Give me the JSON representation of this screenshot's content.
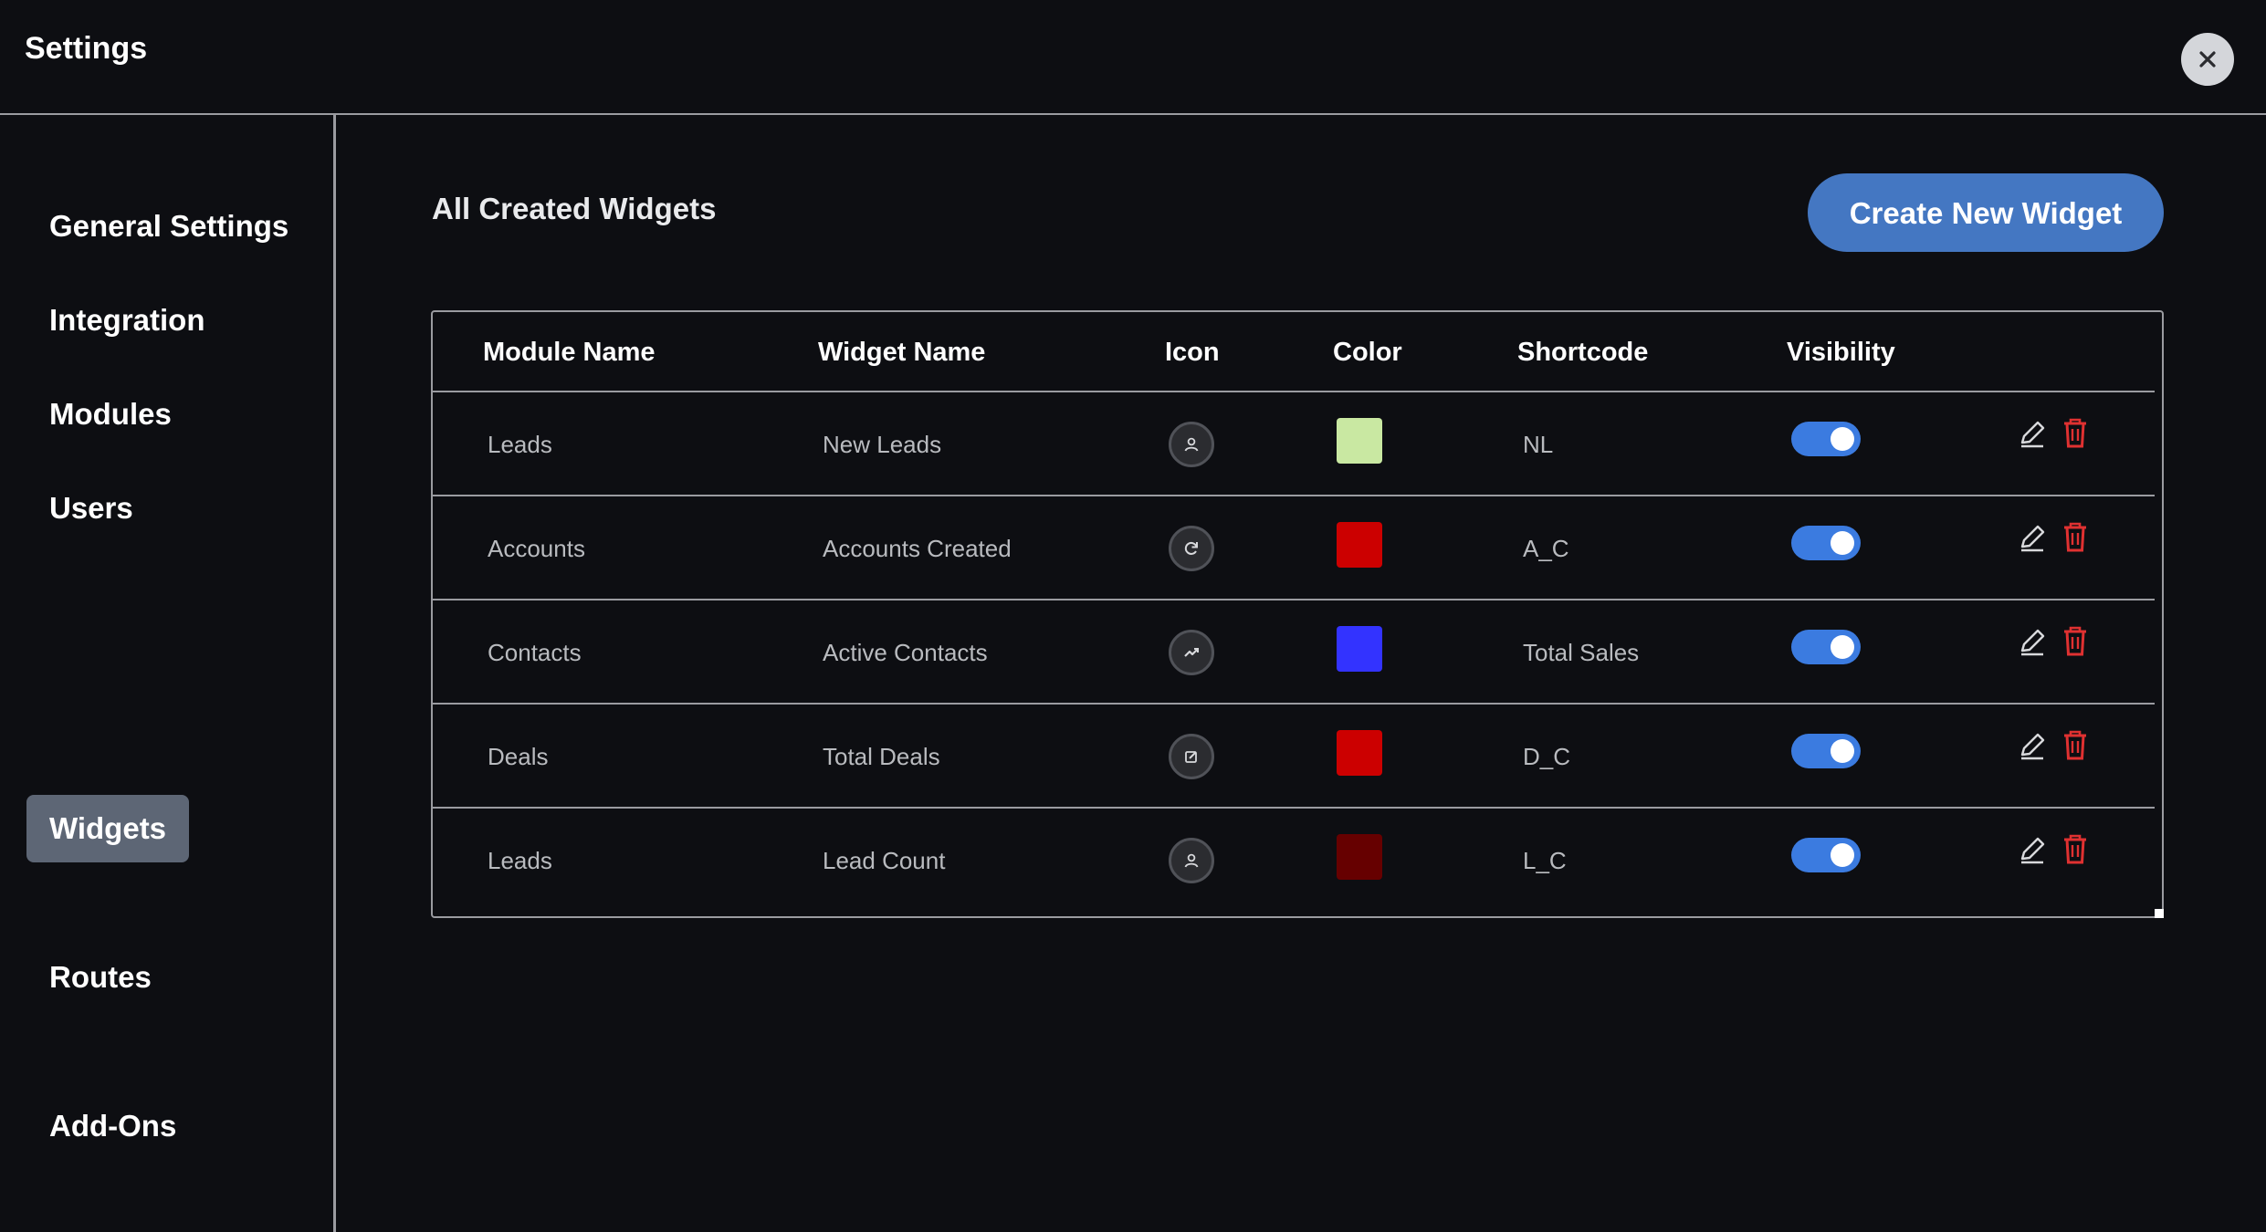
{
  "window": {
    "title": "Settings",
    "close_icon": "close-icon"
  },
  "sidebar": {
    "items": [
      {
        "label": "General Settings",
        "active": false
      },
      {
        "label": "Integration",
        "active": false
      },
      {
        "label": "Modules",
        "active": false
      },
      {
        "label": "Users",
        "active": false
      },
      {
        "label": "Widgets",
        "active": true
      },
      {
        "label": "Routes",
        "active": false
      },
      {
        "label": "Add-Ons",
        "active": false
      }
    ]
  },
  "main": {
    "title": "All Created Widgets",
    "create_button": "Create New Widget"
  },
  "table": {
    "columns": [
      "Module Name",
      "Widget Name",
      "Icon",
      "Color",
      "Shortcode",
      "Visibility"
    ],
    "rows": [
      {
        "module": "Leads",
        "widget": "New Leads",
        "icon": "user-icon",
        "color": "#c9e8a2",
        "shortcode": "NL",
        "visible": true
      },
      {
        "module": "Accounts",
        "widget": "Accounts Created",
        "icon": "refresh-icon",
        "color": "#cc0000",
        "shortcode": "A_C",
        "visible": true
      },
      {
        "module": "Contacts",
        "widget": "Active Contacts",
        "icon": "trend-icon",
        "color": "#3333ff",
        "shortcode": "Total Sales",
        "visible": true
      },
      {
        "module": "Deals",
        "widget": "Total Deals",
        "icon": "edit-square-icon",
        "color": "#cc0000",
        "shortcode": "D_C",
        "visible": true
      },
      {
        "module": "Leads",
        "widget": "Lead Count",
        "icon": "user-icon",
        "color": "#660000",
        "shortcode": "L_C",
        "visible": true
      }
    ]
  },
  "colors": {
    "background": "#0d0e12",
    "accent": "#4477c2",
    "toggle_on": "#3b7be0",
    "active_nav": "#5d6675",
    "delete": "#e03131",
    "divider": "#9a9ba0"
  }
}
